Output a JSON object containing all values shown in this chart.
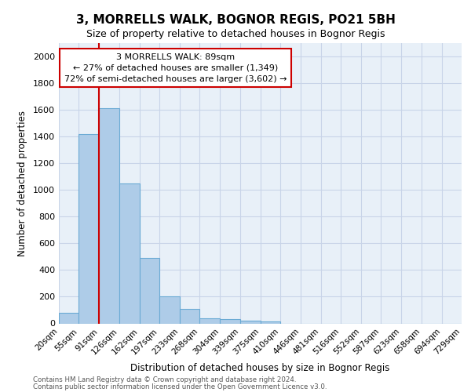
{
  "title1": "3, MORRELLS WALK, BOGNOR REGIS, PO21 5BH",
  "title2": "Size of property relative to detached houses in Bognor Regis",
  "xlabel": "Distribution of detached houses by size in Bognor Regis",
  "ylabel": "Number of detached properties",
  "footnote1": "Contains HM Land Registry data © Crown copyright and database right 2024.",
  "footnote2": "Contains public sector information licensed under the Open Government Licence v3.0.",
  "bin_edges": [
    20,
    55,
    91,
    126,
    162,
    197,
    233,
    268,
    304,
    339,
    375,
    410,
    446,
    481,
    516,
    552,
    587,
    623,
    658,
    694,
    729
  ],
  "bar_heights": [
    80,
    1420,
    1610,
    1050,
    490,
    205,
    110,
    40,
    30,
    20,
    15,
    0,
    0,
    0,
    0,
    0,
    0,
    0,
    0,
    0
  ],
  "bar_color": "#aecce8",
  "bar_edge_color": "#6aaad4",
  "grid_color": "#c8d4e8",
  "bg_color": "#e8f0f8",
  "vline_x": 91,
  "vline_color": "#cc0000",
  "annotation_text": "3 MORRELLS WALK: 89sqm\n← 27% of detached houses are smaller (1,349)\n72% of semi-detached houses are larger (3,602) →",
  "annotation_box_color": "#cc0000",
  "ylim": [
    0,
    2100
  ],
  "yticks": [
    0,
    200,
    400,
    600,
    800,
    1000,
    1200,
    1400,
    1600,
    1800,
    2000
  ],
  "tick_labels": [
    "20sqm",
    "55sqm",
    "91sqm",
    "126sqm",
    "162sqm",
    "197sqm",
    "233sqm",
    "268sqm",
    "304sqm",
    "339sqm",
    "375sqm",
    "410sqm",
    "446sqm",
    "481sqm",
    "516sqm",
    "552sqm",
    "587sqm",
    "623sqm",
    "658sqm",
    "694sqm",
    "729sqm"
  ],
  "title1_fontsize": 11,
  "title2_fontsize": 9
}
